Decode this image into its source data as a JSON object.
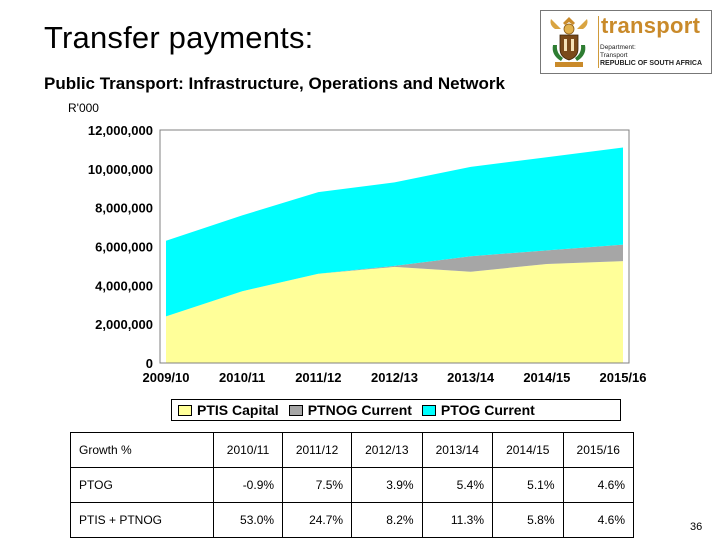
{
  "slide": {
    "title": "Transfer payments:",
    "subtitle": "Public Transport: Infrastructure, Operations and Network",
    "page_number": "36"
  },
  "logo": {
    "brand": "transport",
    "dept_line1": "Department:",
    "dept_line2": "Transport",
    "country": "REPUBLIC OF SOUTH AFRICA"
  },
  "chart_data": {
    "type": "area",
    "stacked": true,
    "title": "",
    "ylabel": "R'000",
    "xlabel": "",
    "ylim": [
      0,
      12000000
    ],
    "yticks": [
      0,
      2000000,
      4000000,
      6000000,
      8000000,
      10000000,
      12000000
    ],
    "ytick_labels": [
      "0",
      "2,000,000",
      "4,000,000",
      "6,000,000",
      "8,000,000",
      "10,000,000",
      "12,000,000"
    ],
    "categories": [
      "2009/10",
      "2010/11",
      "2011/12",
      "2012/13",
      "2013/14",
      "2014/15",
      "2015/16"
    ],
    "grid": false,
    "legend": "bottom",
    "series": [
      {
        "name": "PTIS Capital",
        "color": "#ffff99",
        "values": [
          2400000,
          3700000,
          4600000,
          4950000,
          4700000,
          5100000,
          5250000
        ]
      },
      {
        "name": "PTNOG Current",
        "color": "#a6a6a6",
        "values": [
          0,
          0,
          0,
          50000,
          800000,
          700000,
          850000
        ]
      },
      {
        "name": "PTOG Current",
        "color": "#00ffff",
        "values": [
          3900000,
          3900000,
          4200000,
          4300000,
          4600000,
          4800000,
          5000000
        ]
      }
    ]
  },
  "growth_table": {
    "header_label": "Growth %",
    "columns": [
      "2010/11",
      "2011/12",
      "2012/13",
      "2013/14",
      "2014/15",
      "2015/16"
    ],
    "rows": [
      {
        "label": "PTOG",
        "values": [
          "-0.9%",
          "7.5%",
          "3.9%",
          "5.4%",
          "5.1%",
          "4.6%"
        ]
      },
      {
        "label": "PTIS + PTNOG",
        "values": [
          "53.0%",
          "24.7%",
          "8.2%",
          "11.3%",
          "5.8%",
          "4.6%"
        ]
      }
    ]
  }
}
